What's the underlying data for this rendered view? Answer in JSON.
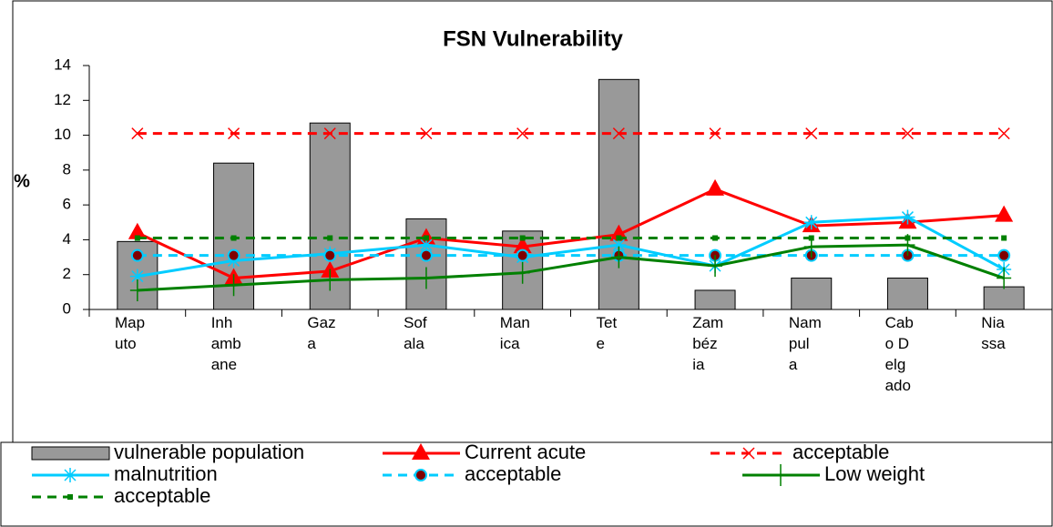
{
  "chart_data": {
    "type": "combo",
    "title": "FSN Vulnerability",
    "y_label": "%",
    "categories": [
      "Maputo",
      "Inhambane",
      "Gaza",
      "Sofala",
      "Manica",
      "Tete",
      "Zambézia",
      "Nampula",
      "Cabo Delgado",
      "Niassa"
    ],
    "ylim": [
      0,
      14
    ],
    "yticks": [
      0,
      2,
      4,
      6,
      8,
      10,
      12,
      14
    ],
    "series": [
      {
        "name": "vulnerable population",
        "type": "bar",
        "color": "#999999",
        "values": [
          3.9,
          8.4,
          10.7,
          5.2,
          4.5,
          13.2,
          1.1,
          1.8,
          1.8,
          1.3
        ]
      },
      {
        "name": "Current acute",
        "type": "line",
        "marker": "triangle",
        "dashed": false,
        "color": "#ff0000",
        "values": [
          4.4,
          1.8,
          2.2,
          4.1,
          3.6,
          4.3,
          6.9,
          4.8,
          5.0,
          5.4
        ]
      },
      {
        "name": "acceptable",
        "type": "line",
        "marker": "x",
        "dashed": true,
        "color": "#ff0000",
        "values": [
          10.1,
          10.1,
          10.1,
          10.1,
          10.1,
          10.1,
          10.1,
          10.1,
          10.1,
          10.1
        ]
      },
      {
        "name": "malnutrition",
        "type": "line",
        "marker": "star",
        "dashed": false,
        "color": "#00ccff",
        "values": [
          1.9,
          2.8,
          3.2,
          3.7,
          3.0,
          3.7,
          2.5,
          5.0,
          5.3,
          2.3
        ]
      },
      {
        "name": "acceptable",
        "type": "line",
        "marker": "circle",
        "dashed": true,
        "color": "#00ccff",
        "values": [
          3.1,
          3.1,
          3.1,
          3.1,
          3.1,
          3.1,
          3.1,
          3.1,
          3.1,
          3.1
        ]
      },
      {
        "name": "Low weight",
        "type": "line",
        "marker": "plus",
        "dashed": false,
        "color": "#008000",
        "values": [
          1.1,
          1.4,
          1.7,
          1.8,
          2.1,
          3.0,
          2.5,
          3.6,
          3.7,
          1.8
        ]
      },
      {
        "name": "acceptable",
        "type": "line",
        "marker": "square",
        "dashed": true,
        "color": "#008000",
        "values": [
          4.1,
          4.1,
          4.1,
          4.1,
          4.1,
          4.1,
          4.1,
          4.1,
          4.1,
          4.1
        ]
      }
    ]
  }
}
